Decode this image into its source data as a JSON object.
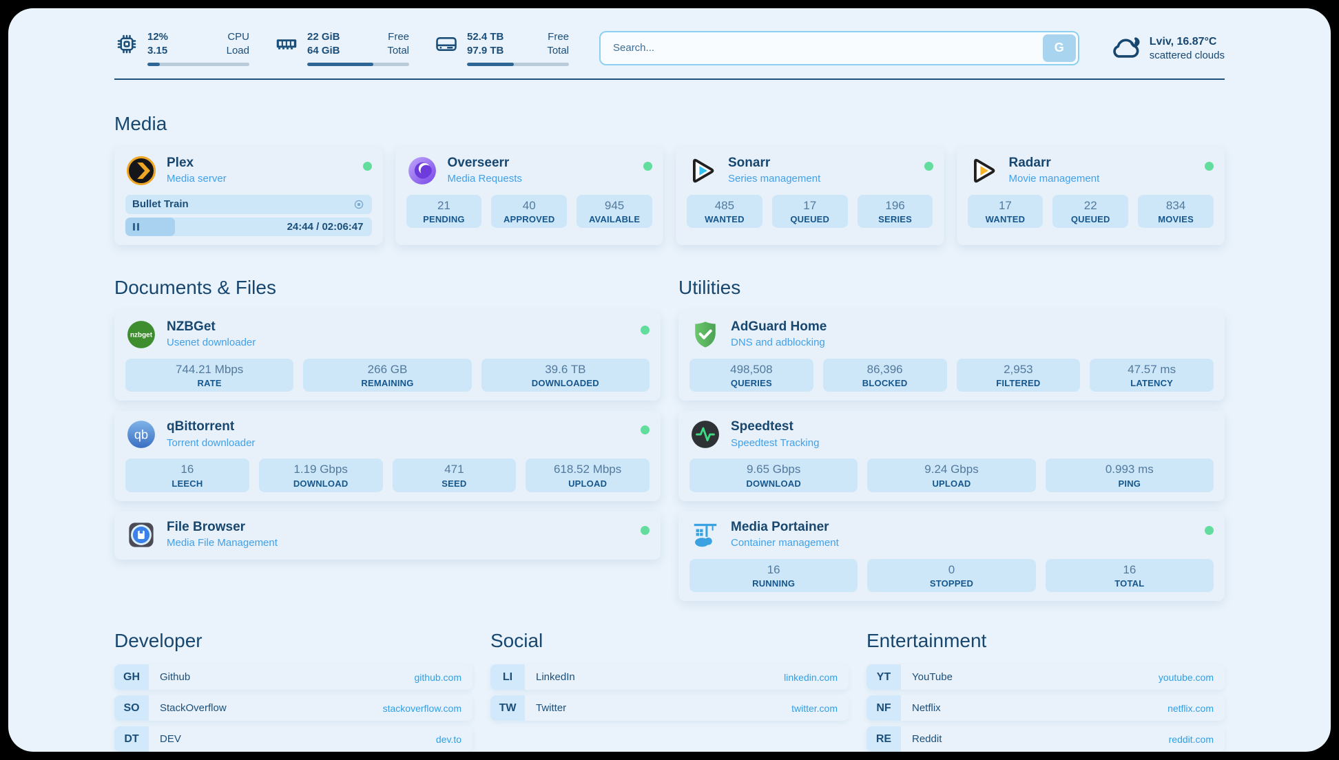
{
  "colors": {
    "page_bg": "#eaf3fb",
    "card_bg": "#e8f1fa",
    "tile_bg": "#cde7f9",
    "heading_text": "#17466f",
    "subtitle_text": "#41a0e8",
    "status_online": "#62dd9d",
    "link_text": "#2f9fe5",
    "bar_fill": "#2d6695",
    "bar_track": "#b9cbd9"
  },
  "header": {
    "resources": [
      {
        "name": "cpu",
        "icon": "cpu-icon",
        "values": [
          "12%",
          "3.15"
        ],
        "labels": [
          "CPU",
          "Load"
        ],
        "percent": 12
      },
      {
        "name": "memory",
        "icon": "memory-icon",
        "values": [
          "22 GiB",
          "64 GiB"
        ],
        "labels": [
          "Free",
          "Total"
        ],
        "percent": 65
      },
      {
        "name": "disk",
        "icon": "disk-icon",
        "values": [
          "52.4 TB",
          "97.9 TB"
        ],
        "labels": [
          "Free",
          "Total"
        ],
        "percent": 46
      }
    ],
    "search": {
      "placeholder": "Search...",
      "button": "G"
    },
    "weather": {
      "title": "Lviv, 16.87°C",
      "condition": "scattered clouds"
    }
  },
  "media": {
    "title": "Media",
    "services": [
      {
        "name": "Plex",
        "subtitle": "Media server",
        "online": true,
        "now_playing": {
          "title": "Bullet Train",
          "time": "24:44 / 02:06:47",
          "progress_percent": 20
        }
      },
      {
        "name": "Overseerr",
        "subtitle": "Media Requests",
        "online": true,
        "stats": [
          {
            "value": "21",
            "label": "PENDING"
          },
          {
            "value": "40",
            "label": "APPROVED"
          },
          {
            "value": "945",
            "label": "AVAILABLE"
          }
        ]
      },
      {
        "name": "Sonarr",
        "subtitle": "Series management",
        "online": true,
        "stats": [
          {
            "value": "485",
            "label": "WANTED"
          },
          {
            "value": "17",
            "label": "QUEUED"
          },
          {
            "value": "196",
            "label": "SERIES"
          }
        ]
      },
      {
        "name": "Radarr",
        "subtitle": "Movie management",
        "online": true,
        "stats": [
          {
            "value": "17",
            "label": "WANTED"
          },
          {
            "value": "22",
            "label": "QUEUED"
          },
          {
            "value": "834",
            "label": "MOVIES"
          }
        ]
      }
    ]
  },
  "documents": {
    "title": "Documents & Files",
    "services": [
      {
        "name": "NZBGet",
        "subtitle": "Usenet downloader",
        "online": true,
        "stats": [
          {
            "value": "744.21 Mbps",
            "label": "RATE"
          },
          {
            "value": "266 GB",
            "label": "REMAINING"
          },
          {
            "value": "39.6 TB",
            "label": "DOWNLOADED"
          }
        ]
      },
      {
        "name": "qBittorrent",
        "subtitle": "Torrent downloader",
        "online": true,
        "stats": [
          {
            "value": "16",
            "label": "LEECH"
          },
          {
            "value": "1.19 Gbps",
            "label": "DOWNLOAD"
          },
          {
            "value": "471",
            "label": "SEED"
          },
          {
            "value": "618.52 Mbps",
            "label": "UPLOAD"
          }
        ]
      },
      {
        "name": "File Browser",
        "subtitle": "Media File Management",
        "online": true
      }
    ]
  },
  "utilities": {
    "title": "Utilities",
    "services": [
      {
        "name": "AdGuard Home",
        "subtitle": "DNS and adblocking",
        "online": false,
        "stats": [
          {
            "value": "498,508",
            "label": "QUERIES"
          },
          {
            "value": "86,396",
            "label": "BLOCKED"
          },
          {
            "value": "2,953",
            "label": "FILTERED"
          },
          {
            "value": "47.57 ms",
            "label": "LATENCY"
          }
        ]
      },
      {
        "name": "Speedtest",
        "subtitle": "Speedtest Tracking",
        "online": false,
        "stats": [
          {
            "value": "9.65 Gbps",
            "label": "DOWNLOAD"
          },
          {
            "value": "9.24 Gbps",
            "label": "UPLOAD"
          },
          {
            "value": "0.993 ms",
            "label": "PING"
          }
        ]
      },
      {
        "name": "Media Portainer",
        "subtitle": "Container management",
        "online": true,
        "stats": [
          {
            "value": "16",
            "label": "RUNNING"
          },
          {
            "value": "0",
            "label": "STOPPED"
          },
          {
            "value": "16",
            "label": "TOTAL"
          }
        ]
      }
    ]
  },
  "bookmarks": {
    "groups": [
      {
        "title": "Developer",
        "items": [
          {
            "abbr": "GH",
            "name": "Github",
            "url": "github.com"
          },
          {
            "abbr": "SO",
            "name": "StackOverflow",
            "url": "stackoverflow.com"
          },
          {
            "abbr": "DT",
            "name": "DEV",
            "url": "dev.to"
          }
        ]
      },
      {
        "title": "Social",
        "items": [
          {
            "abbr": "LI",
            "name": "LinkedIn",
            "url": "linkedin.com"
          },
          {
            "abbr": "TW",
            "name": "Twitter",
            "url": "twitter.com"
          }
        ]
      },
      {
        "title": "Entertainment",
        "items": [
          {
            "abbr": "YT",
            "name": "YouTube",
            "url": "youtube.com"
          },
          {
            "abbr": "NF",
            "name": "Netflix",
            "url": "netflix.com"
          },
          {
            "abbr": "RE",
            "name": "Reddit",
            "url": "reddit.com"
          }
        ]
      }
    ]
  }
}
